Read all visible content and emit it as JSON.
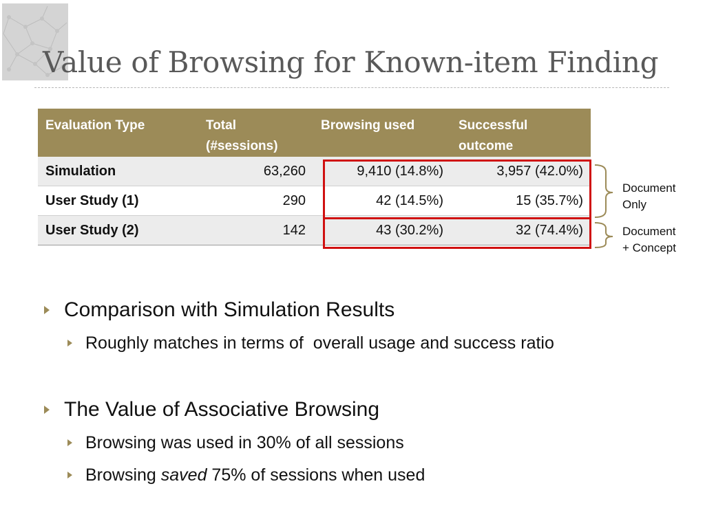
{
  "slide": {
    "title": "Value of Browsing for Known-item Finding"
  },
  "table": {
    "headers": [
      "Evaluation Type",
      "Total (#sessions)",
      "Browsing used",
      "Successful outcome"
    ],
    "rows": [
      {
        "name": "Simulation",
        "total": "63,260",
        "browsing": "9,410 (14.8%)",
        "success": "3,957 (42.0%)"
      },
      {
        "name": "User Study (1)",
        "total": "290",
        "browsing": "42 (14.5%)",
        "success": "15 (35.7%)"
      },
      {
        "name": "User Study (2)",
        "total": "142",
        "browsing": "43 (30.2%)",
        "success": "32 (74.4%)"
      }
    ]
  },
  "annotations": {
    "document_only": [
      "Document",
      "Only"
    ],
    "document_concept": [
      "Document",
      "+ Concept"
    ]
  },
  "bullets": {
    "b1": "Comparison with Simulation Results",
    "b2": "Roughly matches in terms of  overall usage and success ratio",
    "b3": "The Value of Associative Browsing",
    "b4": "Browsing was used in 30% of all sessions",
    "b5_pre": "Browsing ",
    "b5_em": "saved",
    "b5_post": " 75% of sessions when used"
  },
  "colors": {
    "accent": "#9c8b58",
    "highlight": "#d01010",
    "title": "#595959"
  }
}
